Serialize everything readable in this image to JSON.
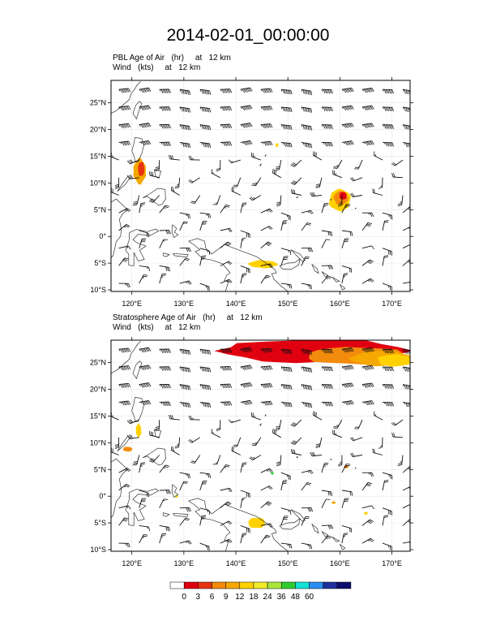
{
  "title": "2014-02-01_00:00:00",
  "panels": [
    {
      "field_label": "PBL Age of Air   (hr)     at   12 km",
      "wind_label": "Wind   (kts)     at   12 km",
      "blobs": [
        {
          "lon": 121.5,
          "lat": 12.2,
          "rlon": 1.4,
          "rlat": 2.6,
          "color": "#f5a800"
        },
        {
          "lon": 121.8,
          "lat": 12.6,
          "rlon": 0.7,
          "rlat": 1.5,
          "color": "#e8330f"
        },
        {
          "lon": 160.0,
          "lat": 6.8,
          "rlon": 2.3,
          "rlat": 2.3,
          "color": "#ffd100"
        },
        {
          "lon": 160.2,
          "lat": 7.2,
          "rlon": 1.5,
          "rlat": 1.5,
          "color": "#f38b0c"
        },
        {
          "lon": 160.6,
          "lat": 7.6,
          "rlon": 0.8,
          "rlat": 0.8,
          "color": "#e00010"
        },
        {
          "lon": 145.2,
          "lat": -5.2,
          "rlon": 3.1,
          "rlat": 0.8,
          "color": "#ffd100"
        },
        {
          "lon": 147.9,
          "lat": 17.1,
          "rlon": 0.3,
          "rlat": 0.4,
          "color": "#ffd100"
        }
      ]
    },
    {
      "field_label": "Stratosphere Age of Air   (hr)     at   12 km",
      "wind_label": "Wind   (kts)     at   12 km",
      "blobs": [
        {
          "lon": 155.0,
          "lat": 27.2,
          "rlon": 20.5,
          "rlat": 2.4,
          "color": "#e00010"
        },
        {
          "lon": 163.0,
          "lat": 26.3,
          "rlon": 10.5,
          "rlat": 1.8,
          "color": "#f38b0c"
        },
        {
          "lon": 168.0,
          "lat": 25.8,
          "rlon": 6.5,
          "rlat": 1.6,
          "color": "#f5a800"
        },
        {
          "lon": 170.5,
          "lat": 25.4,
          "rlon": 3.6,
          "rlat": 1.3,
          "color": "#ffd100"
        },
        {
          "lon": 119.2,
          "lat": 8.8,
          "rlon": 1.0,
          "rlat": 0.5,
          "color": "#f38b0c"
        },
        {
          "lon": 121.3,
          "lat": 12.3,
          "rlon": 0.6,
          "rlat": 1.4,
          "color": "#ffd100"
        },
        {
          "lon": 144.0,
          "lat": -5.0,
          "rlon": 1.9,
          "rlat": 1.1,
          "color": "#ffd100"
        },
        {
          "lon": 158.8,
          "lat": -1.2,
          "rlon": 0.4,
          "rlat": 0.3,
          "color": "#f5a800"
        },
        {
          "lon": 161.2,
          "lat": 5.5,
          "rlon": 0.5,
          "rlat": 0.3,
          "color": "#f38b0c"
        },
        {
          "lon": 165.0,
          "lat": -3.2,
          "rlon": 0.4,
          "rlat": 0.3,
          "color": "#ffd100"
        },
        {
          "lon": 147.0,
          "lat": 4.3,
          "rlon": 0.3,
          "rlat": 0.3,
          "color": "#2fcc2f"
        },
        {
          "lon": 128.6,
          "lat": 0.0,
          "rlon": 0.3,
          "rlat": 0.3,
          "color": "#ffd100"
        }
      ]
    }
  ],
  "lon_ticks": [
    "120°E",
    "130°E",
    "140°E",
    "150°E",
    "160°E",
    "170°E"
  ],
  "lat_ticks": [
    "25°N",
    "20°N",
    "15°N",
    "10°N",
    "5°N",
    "0°",
    "5°S",
    "10°S"
  ],
  "colorbar": {
    "labels": [
      "0",
      "3",
      "6",
      "9",
      "12",
      "18",
      "24",
      "36",
      "48",
      "60"
    ],
    "colors": [
      "#ffffff",
      "#e00010",
      "#e8330f",
      "#f38b0c",
      "#f5a800",
      "#ffd100",
      "#f0ec2a",
      "#a8e63c",
      "#2fcc2f",
      "#14e1d6",
      "#2a8ef0",
      "#1e2f9c",
      "#0d0d6e"
    ]
  }
}
